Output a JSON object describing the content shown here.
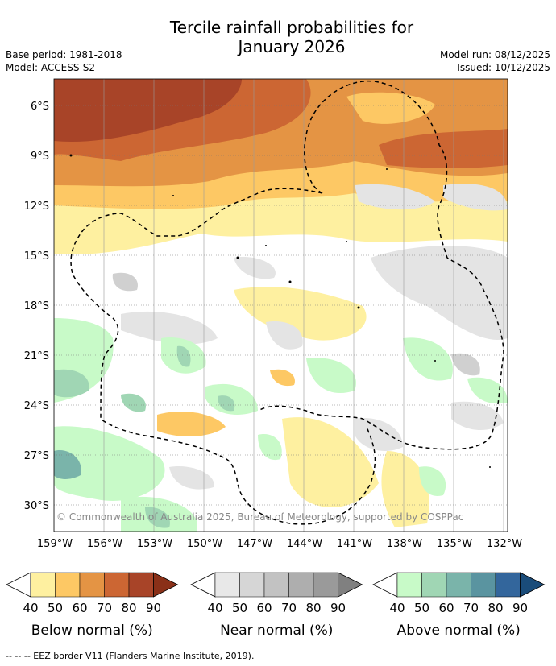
{
  "title_line1": "Tercile rainfall probabilities for",
  "title_line2": "January 2026",
  "meta": {
    "base_period": "Base period: 1981-2018",
    "model": "Model: ACCESS-S2",
    "model_run": "Model run: 08/12/2025",
    "issued": "Issued: 10/12/2025"
  },
  "map": {
    "lat_labels": [
      "6°S",
      "9°S",
      "12°S",
      "15°S",
      "18°S",
      "21°S",
      "24°S",
      "27°S",
      "30°S"
    ],
    "lon_labels": [
      "159°W",
      "156°W",
      "153°W",
      "150°W",
      "147°W",
      "144°W",
      "141°W",
      "138°W",
      "135°W",
      "132°W"
    ],
    "copyright": "© Commonwealth of Australia 2025, Bureau of Meteorology, supported by COSPPac"
  },
  "legend": [
    {
      "title": "Below normal (%)",
      "ticks": [
        "40",
        "50",
        "60",
        "70",
        "80",
        "90"
      ],
      "colors": [
        "#fef0a0",
        "#fdc864",
        "#e49444",
        "#cc6633",
        "#a84428",
        "#8a3018"
      ]
    },
    {
      "title": "Near normal (%)",
      "ticks": [
        "40",
        "50",
        "60",
        "70",
        "80",
        "90"
      ],
      "colors": [
        "#e8e8e8",
        "#d6d6d6",
        "#c2c2c2",
        "#aeaeae",
        "#9a9a9a",
        "#808080"
      ]
    },
    {
      "title": "Above normal (%)",
      "ticks": [
        "40",
        "50",
        "60",
        "70",
        "80",
        "90"
      ],
      "colors": [
        "#c8fac8",
        "#a0d6b4",
        "#7ab4aa",
        "#5a94a0",
        "#33669c",
        "#1a4c7a"
      ]
    }
  ],
  "footnote": "--  --  -- EEZ border V11 (Flanders Marine Institute, 2019).",
  "colors": {
    "bn1": "#fef0a0",
    "bn2": "#fdc864",
    "bn3": "#e49444",
    "bn4": "#cc6633",
    "nn1": "#e4e4e4",
    "nn2": "#d0d0d0",
    "an1": "#c8fac8",
    "an2": "#a0d6b4",
    "an3": "#7ab4aa"
  }
}
